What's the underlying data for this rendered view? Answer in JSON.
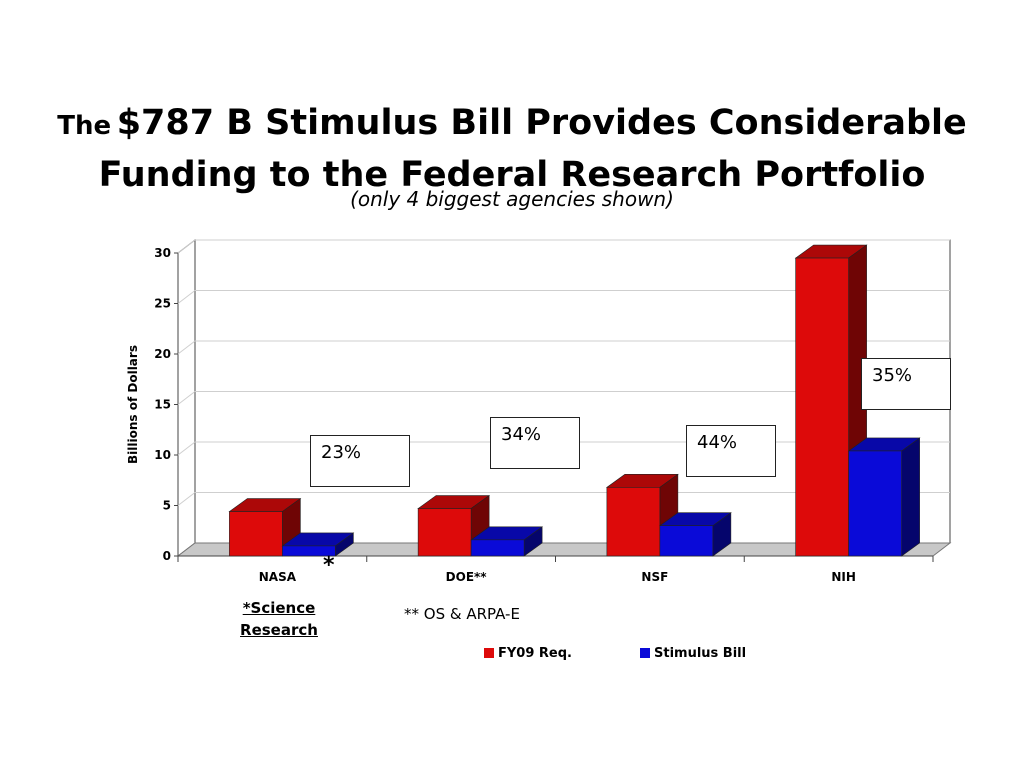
{
  "title": {
    "prefix": "The",
    "line1": "$787 B Stimulus Bill Provides Considerable",
    "line2": "Funding to the Federal Research Portfolio"
  },
  "subtitle": "(only 4 biggest agencies shown)",
  "colors": {
    "fy09": "#dd0a0a",
    "stimulus": "#0a0ad8"
  },
  "chart_data": {
    "type": "bar",
    "categories": [
      "NASA",
      "DOE**",
      "NSF",
      "NIH"
    ],
    "series": [
      {
        "name": "FY09 Req.",
        "values": [
          4.4,
          4.7,
          6.8,
          29.5
        ]
      },
      {
        "name": "Stimulus Bill",
        "values": [
          1.0,
          1.6,
          3.0,
          10.4
        ]
      }
    ],
    "ylabel": "Billions of Dollars",
    "ylim": [
      0,
      30
    ],
    "yticks": [
      0,
      5,
      10,
      15,
      20,
      25,
      30
    ],
    "grid": true,
    "legend_position": "bottom"
  },
  "percent_labels": [
    "23%",
    "34%",
    "44%",
    "35%"
  ],
  "notes": {
    "asterisk": "*",
    "science_line1": "*Science",
    "science_line2": "Research",
    "os_arpa": "** OS & ARPA-E"
  }
}
